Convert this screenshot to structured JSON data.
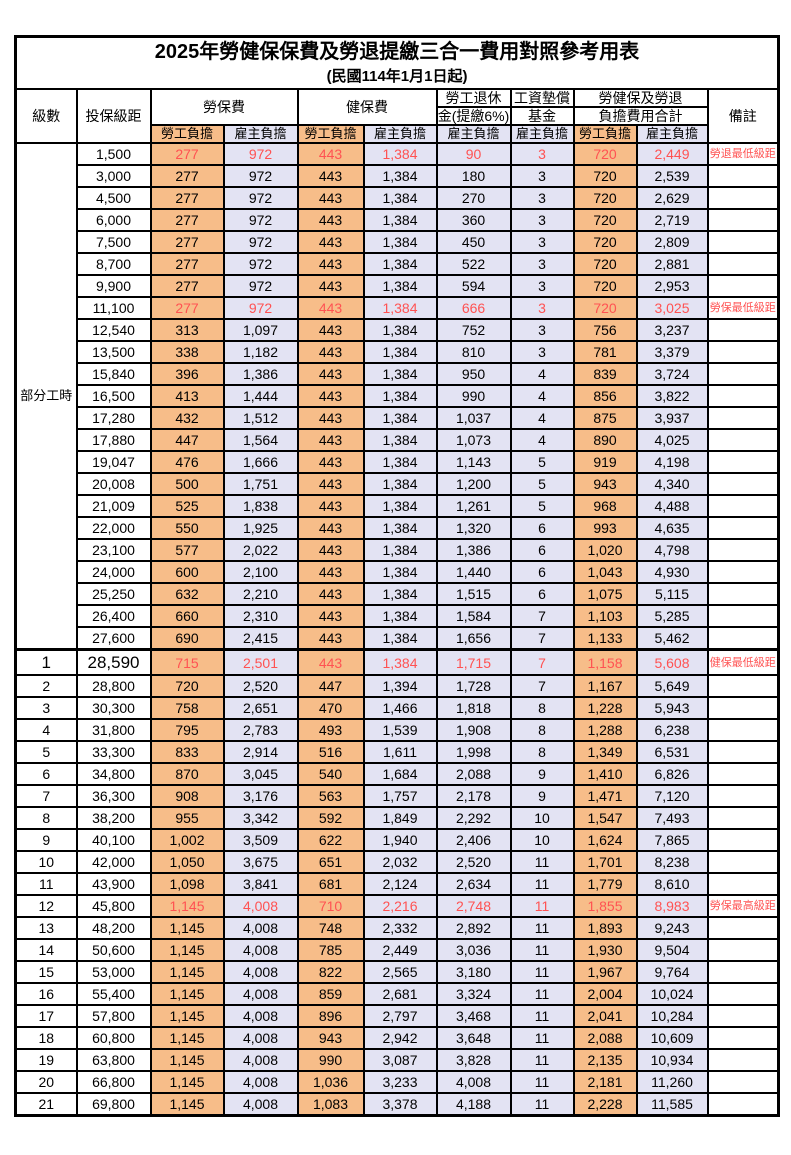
{
  "colors": {
    "employee_column_bg": "#F7BD89",
    "employer_column_bg": "#E3E3F3",
    "highlight_text": "#FF5252",
    "border": "#000000"
  },
  "table": {
    "title": "2025年勞健保保費及勞退提繳三合一費用對照參考用表",
    "subtitle": "(民國114年1月1日起)",
    "columns": {
      "level": "級數",
      "bracket": "投保級距",
      "labor_insurance": "勞保費",
      "health_insurance": "健保費",
      "pension_line1": "勞工退休",
      "pension_line2": "金(提繳6%)",
      "wage_fund_line1": "工資墊償",
      "wage_fund_line2": "基金",
      "total_line1": "勞健保及勞退",
      "total_line2": "負擔費用合計",
      "remark": "備註",
      "employee_burden": "勞工負擔",
      "employer_burden": "雇主負擔"
    },
    "group_label": "部分工時",
    "part_time_rowspan": 23,
    "rows": [
      {
        "level": "",
        "salary": "1,500",
        "li_emp": "277",
        "li_er": "972",
        "hi_emp": "443",
        "hi_er": "1,384",
        "pension": "90",
        "fund": "3",
        "tot_emp": "720",
        "tot_er": "2,449",
        "remark": "勞退最低級距",
        "red": true,
        "special": false
      },
      {
        "level": "",
        "salary": "3,000",
        "li_emp": "277",
        "li_er": "972",
        "hi_emp": "443",
        "hi_er": "1,384",
        "pension": "180",
        "fund": "3",
        "tot_emp": "720",
        "tot_er": "2,539",
        "remark": "",
        "red": false,
        "special": false
      },
      {
        "level": "",
        "salary": "4,500",
        "li_emp": "277",
        "li_er": "972",
        "hi_emp": "443",
        "hi_er": "1,384",
        "pension": "270",
        "fund": "3",
        "tot_emp": "720",
        "tot_er": "2,629",
        "remark": "",
        "red": false,
        "special": false
      },
      {
        "level": "",
        "salary": "6,000",
        "li_emp": "277",
        "li_er": "972",
        "hi_emp": "443",
        "hi_er": "1,384",
        "pension": "360",
        "fund": "3",
        "tot_emp": "720",
        "tot_er": "2,719",
        "remark": "",
        "red": false,
        "special": false
      },
      {
        "level": "",
        "salary": "7,500",
        "li_emp": "277",
        "li_er": "972",
        "hi_emp": "443",
        "hi_er": "1,384",
        "pension": "450",
        "fund": "3",
        "tot_emp": "720",
        "tot_er": "2,809",
        "remark": "",
        "red": false,
        "special": false
      },
      {
        "level": "",
        "salary": "8,700",
        "li_emp": "277",
        "li_er": "972",
        "hi_emp": "443",
        "hi_er": "1,384",
        "pension": "522",
        "fund": "3",
        "tot_emp": "720",
        "tot_er": "2,881",
        "remark": "",
        "red": false,
        "special": false
      },
      {
        "level": "",
        "salary": "9,900",
        "li_emp": "277",
        "li_er": "972",
        "hi_emp": "443",
        "hi_er": "1,384",
        "pension": "594",
        "fund": "3",
        "tot_emp": "720",
        "tot_er": "2,953",
        "remark": "",
        "red": false,
        "special": false
      },
      {
        "level": "",
        "salary": "11,100",
        "li_emp": "277",
        "li_er": "972",
        "hi_emp": "443",
        "hi_er": "1,384",
        "pension": "666",
        "fund": "3",
        "tot_emp": "720",
        "tot_er": "3,025",
        "remark": "勞保最低級距",
        "red": true,
        "special": false
      },
      {
        "level": "",
        "salary": "12,540",
        "li_emp": "313",
        "li_er": "1,097",
        "hi_emp": "443",
        "hi_er": "1,384",
        "pension": "752",
        "fund": "3",
        "tot_emp": "756",
        "tot_er": "3,237",
        "remark": "",
        "red": false,
        "special": false
      },
      {
        "level": "",
        "salary": "13,500",
        "li_emp": "338",
        "li_er": "1,182",
        "hi_emp": "443",
        "hi_er": "1,384",
        "pension": "810",
        "fund": "3",
        "tot_emp": "781",
        "tot_er": "3,379",
        "remark": "",
        "red": false,
        "special": false
      },
      {
        "level": "",
        "salary": "15,840",
        "li_emp": "396",
        "li_er": "1,386",
        "hi_emp": "443",
        "hi_er": "1,384",
        "pension": "950",
        "fund": "4",
        "tot_emp": "839",
        "tot_er": "3,724",
        "remark": "",
        "red": false,
        "special": false
      },
      {
        "level": "",
        "salary": "16,500",
        "li_emp": "413",
        "li_er": "1,444",
        "hi_emp": "443",
        "hi_er": "1,384",
        "pension": "990",
        "fund": "4",
        "tot_emp": "856",
        "tot_er": "3,822",
        "remark": "",
        "red": false,
        "special": false
      },
      {
        "level": "",
        "salary": "17,280",
        "li_emp": "432",
        "li_er": "1,512",
        "hi_emp": "443",
        "hi_er": "1,384",
        "pension": "1,037",
        "fund": "4",
        "tot_emp": "875",
        "tot_er": "3,937",
        "remark": "",
        "red": false,
        "special": false
      },
      {
        "level": "",
        "salary": "17,880",
        "li_emp": "447",
        "li_er": "1,564",
        "hi_emp": "443",
        "hi_er": "1,384",
        "pension": "1,073",
        "fund": "4",
        "tot_emp": "890",
        "tot_er": "4,025",
        "remark": "",
        "red": false,
        "special": false
      },
      {
        "level": "",
        "salary": "19,047",
        "li_emp": "476",
        "li_er": "1,666",
        "hi_emp": "443",
        "hi_er": "1,384",
        "pension": "1,143",
        "fund": "5",
        "tot_emp": "919",
        "tot_er": "4,198",
        "remark": "",
        "red": false,
        "special": false
      },
      {
        "level": "",
        "salary": "20,008",
        "li_emp": "500",
        "li_er": "1,751",
        "hi_emp": "443",
        "hi_er": "1,384",
        "pension": "1,200",
        "fund": "5",
        "tot_emp": "943",
        "tot_er": "4,340",
        "remark": "",
        "red": false,
        "special": false
      },
      {
        "level": "",
        "salary": "21,009",
        "li_emp": "525",
        "li_er": "1,838",
        "hi_emp": "443",
        "hi_er": "1,384",
        "pension": "1,261",
        "fund": "5",
        "tot_emp": "968",
        "tot_er": "4,488",
        "remark": "",
        "red": false,
        "special": false
      },
      {
        "level": "",
        "salary": "22,000",
        "li_emp": "550",
        "li_er": "1,925",
        "hi_emp": "443",
        "hi_er": "1,384",
        "pension": "1,320",
        "fund": "6",
        "tot_emp": "993",
        "tot_er": "4,635",
        "remark": "",
        "red": false,
        "special": false
      },
      {
        "level": "",
        "salary": "23,100",
        "li_emp": "577",
        "li_er": "2,022",
        "hi_emp": "443",
        "hi_er": "1,384",
        "pension": "1,386",
        "fund": "6",
        "tot_emp": "1,020",
        "tot_er": "4,798",
        "remark": "",
        "red": false,
        "special": false
      },
      {
        "level": "",
        "salary": "24,000",
        "li_emp": "600",
        "li_er": "2,100",
        "hi_emp": "443",
        "hi_er": "1,384",
        "pension": "1,440",
        "fund": "6",
        "tot_emp": "1,043",
        "tot_er": "4,930",
        "remark": "",
        "red": false,
        "special": false
      },
      {
        "level": "",
        "salary": "25,250",
        "li_emp": "632",
        "li_er": "2,210",
        "hi_emp": "443",
        "hi_er": "1,384",
        "pension": "1,515",
        "fund": "6",
        "tot_emp": "1,075",
        "tot_er": "5,115",
        "remark": "",
        "red": false,
        "special": false
      },
      {
        "level": "",
        "salary": "26,400",
        "li_emp": "660",
        "li_er": "2,310",
        "hi_emp": "443",
        "hi_er": "1,384",
        "pension": "1,584",
        "fund": "7",
        "tot_emp": "1,103",
        "tot_er": "5,285",
        "remark": "",
        "red": false,
        "special": false
      },
      {
        "level": "",
        "salary": "27,600",
        "li_emp": "690",
        "li_er": "2,415",
        "hi_emp": "443",
        "hi_er": "1,384",
        "pension": "1,656",
        "fund": "7",
        "tot_emp": "1,133",
        "tot_er": "5,462",
        "remark": "",
        "red": false,
        "special": false
      },
      {
        "level": "1",
        "salary": "28,590",
        "li_emp": "715",
        "li_er": "2,501",
        "hi_emp": "443",
        "hi_er": "1,384",
        "pension": "1,715",
        "fund": "7",
        "tot_emp": "1,158",
        "tot_er": "5,608",
        "remark": "健保最低級距",
        "red": true,
        "special": true
      },
      {
        "level": "2",
        "salary": "28,800",
        "li_emp": "720",
        "li_er": "2,520",
        "hi_emp": "447",
        "hi_er": "1,394",
        "pension": "1,728",
        "fund": "7",
        "tot_emp": "1,167",
        "tot_er": "5,649",
        "remark": "",
        "red": false,
        "special": false
      },
      {
        "level": "3",
        "salary": "30,300",
        "li_emp": "758",
        "li_er": "2,651",
        "hi_emp": "470",
        "hi_er": "1,466",
        "pension": "1,818",
        "fund": "8",
        "tot_emp": "1,228",
        "tot_er": "5,943",
        "remark": "",
        "red": false,
        "special": false
      },
      {
        "level": "4",
        "salary": "31,800",
        "li_emp": "795",
        "li_er": "2,783",
        "hi_emp": "493",
        "hi_er": "1,539",
        "pension": "1,908",
        "fund": "8",
        "tot_emp": "1,288",
        "tot_er": "6,238",
        "remark": "",
        "red": false,
        "special": false
      },
      {
        "level": "5",
        "salary": "33,300",
        "li_emp": "833",
        "li_er": "2,914",
        "hi_emp": "516",
        "hi_er": "1,611",
        "pension": "1,998",
        "fund": "8",
        "tot_emp": "1,349",
        "tot_er": "6,531",
        "remark": "",
        "red": false,
        "special": false
      },
      {
        "level": "6",
        "salary": "34,800",
        "li_emp": "870",
        "li_er": "3,045",
        "hi_emp": "540",
        "hi_er": "1,684",
        "pension": "2,088",
        "fund": "9",
        "tot_emp": "1,410",
        "tot_er": "6,826",
        "remark": "",
        "red": false,
        "special": false
      },
      {
        "level": "7",
        "salary": "36,300",
        "li_emp": "908",
        "li_er": "3,176",
        "hi_emp": "563",
        "hi_er": "1,757",
        "pension": "2,178",
        "fund": "9",
        "tot_emp": "1,471",
        "tot_er": "7,120",
        "remark": "",
        "red": false,
        "special": false
      },
      {
        "level": "8",
        "salary": "38,200",
        "li_emp": "955",
        "li_er": "3,342",
        "hi_emp": "592",
        "hi_er": "1,849",
        "pension": "2,292",
        "fund": "10",
        "tot_emp": "1,547",
        "tot_er": "7,493",
        "remark": "",
        "red": false,
        "special": false
      },
      {
        "level": "9",
        "salary": "40,100",
        "li_emp": "1,002",
        "li_er": "3,509",
        "hi_emp": "622",
        "hi_er": "1,940",
        "pension": "2,406",
        "fund": "10",
        "tot_emp": "1,624",
        "tot_er": "7,865",
        "remark": "",
        "red": false,
        "special": false
      },
      {
        "level": "10",
        "salary": "42,000",
        "li_emp": "1,050",
        "li_er": "3,675",
        "hi_emp": "651",
        "hi_er": "2,032",
        "pension": "2,520",
        "fund": "11",
        "tot_emp": "1,701",
        "tot_er": "8,238",
        "remark": "",
        "red": false,
        "special": false
      },
      {
        "level": "11",
        "salary": "43,900",
        "li_emp": "1,098",
        "li_er": "3,841",
        "hi_emp": "681",
        "hi_er": "2,124",
        "pension": "2,634",
        "fund": "11",
        "tot_emp": "1,779",
        "tot_er": "8,610",
        "remark": "",
        "red": false,
        "special": false
      },
      {
        "level": "12",
        "salary": "45,800",
        "li_emp": "1,145",
        "li_er": "4,008",
        "hi_emp": "710",
        "hi_er": "2,216",
        "pension": "2,748",
        "fund": "11",
        "tot_emp": "1,855",
        "tot_er": "8,983",
        "remark": "勞保最高級距",
        "red": true,
        "special": false
      },
      {
        "level": "13",
        "salary": "48,200",
        "li_emp": "1,145",
        "li_er": "4,008",
        "hi_emp": "748",
        "hi_er": "2,332",
        "pension": "2,892",
        "fund": "11",
        "tot_emp": "1,893",
        "tot_er": "9,243",
        "remark": "",
        "red": false,
        "special": false
      },
      {
        "level": "14",
        "salary": "50,600",
        "li_emp": "1,145",
        "li_er": "4,008",
        "hi_emp": "785",
        "hi_er": "2,449",
        "pension": "3,036",
        "fund": "11",
        "tot_emp": "1,930",
        "tot_er": "9,504",
        "remark": "",
        "red": false,
        "special": false
      },
      {
        "level": "15",
        "salary": "53,000",
        "li_emp": "1,145",
        "li_er": "4,008",
        "hi_emp": "822",
        "hi_er": "2,565",
        "pension": "3,180",
        "fund": "11",
        "tot_emp": "1,967",
        "tot_er": "9,764",
        "remark": "",
        "red": false,
        "special": false
      },
      {
        "level": "16",
        "salary": "55,400",
        "li_emp": "1,145",
        "li_er": "4,008",
        "hi_emp": "859",
        "hi_er": "2,681",
        "pension": "3,324",
        "fund": "11",
        "tot_emp": "2,004",
        "tot_er": "10,024",
        "remark": "",
        "red": false,
        "special": false
      },
      {
        "level": "17",
        "salary": "57,800",
        "li_emp": "1,145",
        "li_er": "4,008",
        "hi_emp": "896",
        "hi_er": "2,797",
        "pension": "3,468",
        "fund": "11",
        "tot_emp": "2,041",
        "tot_er": "10,284",
        "remark": "",
        "red": false,
        "special": false
      },
      {
        "level": "18",
        "salary": "60,800",
        "li_emp": "1,145",
        "li_er": "4,008",
        "hi_emp": "943",
        "hi_er": "2,942",
        "pension": "3,648",
        "fund": "11",
        "tot_emp": "2,088",
        "tot_er": "10,609",
        "remark": "",
        "red": false,
        "special": false
      },
      {
        "level": "19",
        "salary": "63,800",
        "li_emp": "1,145",
        "li_er": "4,008",
        "hi_emp": "990",
        "hi_er": "3,087",
        "pension": "3,828",
        "fund": "11",
        "tot_emp": "2,135",
        "tot_er": "10,934",
        "remark": "",
        "red": false,
        "special": false
      },
      {
        "level": "20",
        "salary": "66,800",
        "li_emp": "1,145",
        "li_er": "4,008",
        "hi_emp": "1,036",
        "hi_er": "3,233",
        "pension": "4,008",
        "fund": "11",
        "tot_emp": "2,181",
        "tot_er": "11,260",
        "remark": "",
        "red": false,
        "special": false
      },
      {
        "level": "21",
        "salary": "69,800",
        "li_emp": "1,145",
        "li_er": "4,008",
        "hi_emp": "1,083",
        "hi_er": "3,378",
        "pension": "4,188",
        "fund": "11",
        "tot_emp": "2,228",
        "tot_er": "11,585",
        "remark": "",
        "red": false,
        "special": false
      }
    ]
  }
}
